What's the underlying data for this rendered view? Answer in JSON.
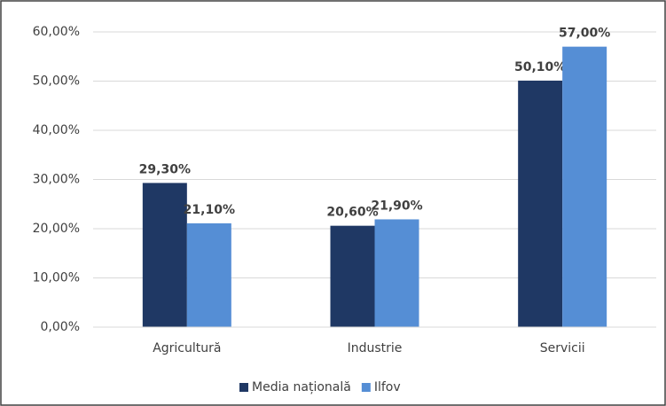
{
  "chart_data": {
    "type": "bar",
    "categories": [
      "Agricultură",
      "Industrie",
      "Servicii"
    ],
    "series": [
      {
        "name": "Media națională",
        "color": "#1f3864",
        "values": [
          29.3,
          20.6,
          50.1
        ],
        "value_labels": [
          "29,30%",
          "20,60%",
          "50,10%"
        ]
      },
      {
        "name": "Ilfov",
        "color": "#558ed5",
        "values": [
          21.1,
          21.9,
          57
        ],
        "value_labels": [
          "21,10%",
          "21,90%",
          "57,00%"
        ]
      }
    ],
    "ylim": [
      0,
      60
    ],
    "yticks": [
      {
        "value": 0,
        "label": "0,00%"
      },
      {
        "value": 10,
        "label": "10,00%"
      },
      {
        "value": 20,
        "label": "20,00%"
      },
      {
        "value": 30,
        "label": "30,00%"
      },
      {
        "value": 40,
        "label": "40,00%"
      },
      {
        "value": 50,
        "label": "50,00%"
      },
      {
        "value": 60,
        "label": "60,00%"
      }
    ],
    "grid": true,
    "legend": "bottom"
  }
}
